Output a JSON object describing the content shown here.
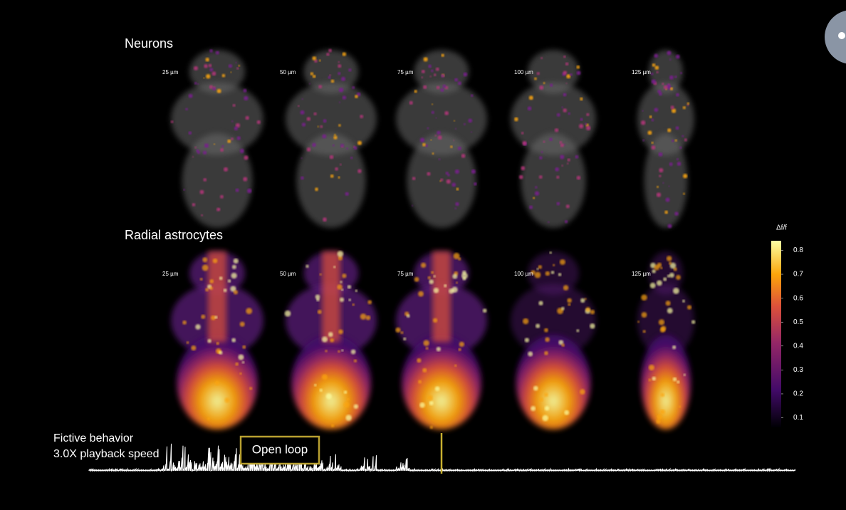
{
  "panels": [
    {
      "label": "Neurons",
      "depths": [
        "25 µm",
        "50 µm",
        "75 µm",
        "100 µm",
        "125 µm"
      ]
    },
    {
      "label": "Radial astrocytes",
      "depths": [
        "25 µm",
        "50 µm",
        "75 µm",
        "100 µm",
        "125 µm"
      ]
    }
  ],
  "colorbar": {
    "label": "Δf/f",
    "range": [
      0.06,
      0.84
    ],
    "ticks": [
      0.1,
      0.2,
      0.3,
      0.4,
      0.5,
      0.6,
      0.7,
      0.8
    ]
  },
  "behavior": {
    "title": "Fictive behavior",
    "speed": "3.0X playback speed",
    "annotation": "Open loop"
  }
}
